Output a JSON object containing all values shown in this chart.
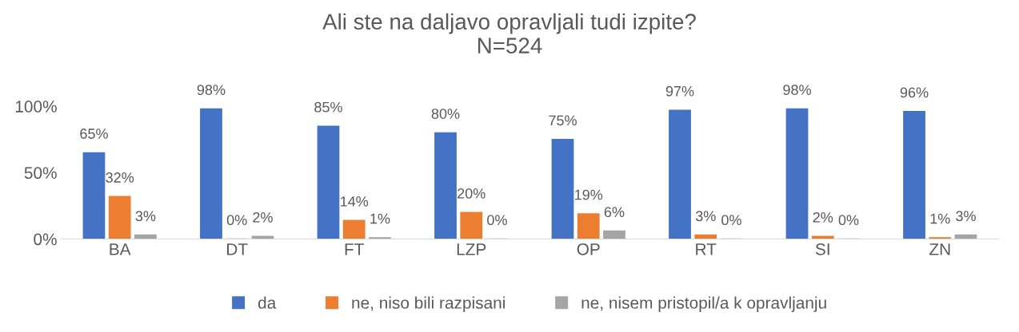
{
  "chart_data": {
    "type": "bar",
    "title": "Ali ste na daljavo opravljali tudi izpite?\nN=524",
    "categories": [
      "BA",
      "DT",
      "FT",
      "LZP",
      "OP",
      "RT",
      "SI",
      "ZN"
    ],
    "series": [
      {
        "name": "da",
        "color": "#4472c4",
        "values": [
          65,
          98,
          85,
          80,
          75,
          97,
          98,
          96
        ],
        "value_labels": [
          "65%",
          "98%",
          "85%",
          "80%",
          "75%",
          "97%",
          "98%",
          "96%"
        ]
      },
      {
        "name": "ne, niso bili razpisani",
        "color": "#ed7d31",
        "values": [
          32,
          0,
          14,
          20,
          19,
          3,
          2,
          1
        ],
        "value_labels": [
          "32%",
          "0%",
          "14%",
          "20%",
          "19%",
          "3%",
          "2%",
          "1%"
        ]
      },
      {
        "name": "ne, nisem pristopil/a k opravljanju",
        "color": "#a5a5a5",
        "values": [
          3,
          2,
          1,
          0,
          6,
          0,
          0,
          3
        ],
        "value_labels": [
          "3%",
          "2%",
          "1%",
          "0%",
          "6%",
          "0%",
          "0%",
          "3%"
        ]
      }
    ],
    "ylim": [
      0,
      100
    ],
    "yticks": [
      {
        "value": 0,
        "label": "0%"
      },
      {
        "value": 50,
        "label": "50%"
      },
      {
        "value": 100,
        "label": "100%"
      }
    ],
    "grid": false,
    "legend": "bottom"
  }
}
